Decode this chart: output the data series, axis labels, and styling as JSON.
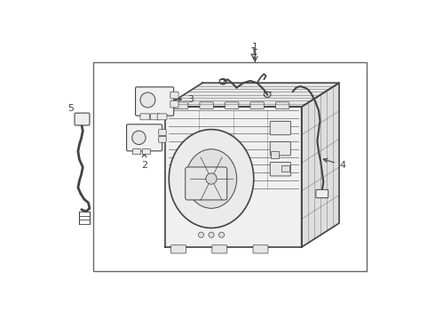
{
  "background_color": "#ffffff",
  "line_color": "#444444",
  "border_color": "#666666",
  "fig_width": 4.9,
  "fig_height": 3.6,
  "dpi": 100
}
